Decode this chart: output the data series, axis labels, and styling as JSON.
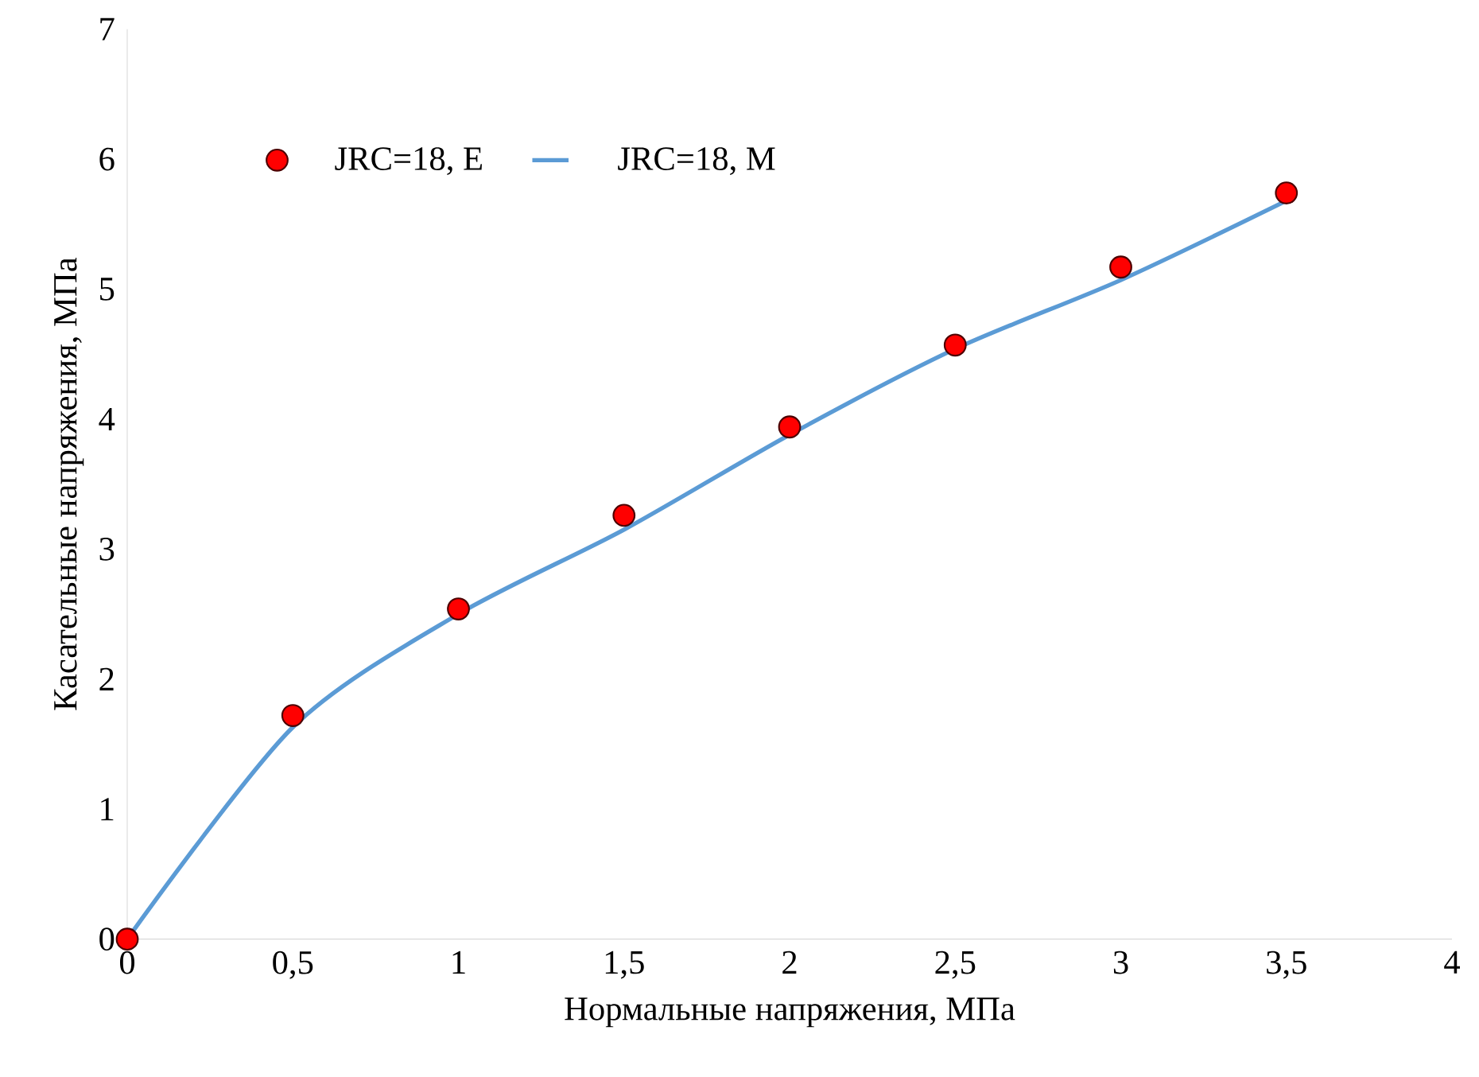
{
  "chart_data": {
    "type": "scatter",
    "xlabel": "Нормальные напряжения, МПа",
    "ylabel": "Касательные напряжения, МПа",
    "xlim": [
      0,
      4
    ],
    "ylim": [
      0,
      7
    ],
    "xticks": [
      0,
      {
        "value": 0.5,
        "label": "0,5"
      },
      1,
      {
        "value": 1.5,
        "label": "1,5"
      },
      2,
      {
        "value": 2.5,
        "label": "2,5"
      },
      3,
      {
        "value": 3.5,
        "label": "3,5"
      },
      4
    ],
    "yticks": [
      0,
      1,
      2,
      3,
      4,
      5,
      6,
      7
    ],
    "grid": false,
    "legend": "top left",
    "series": [
      {
        "name": "JRC=18, E",
        "color": "#ff0000",
        "marker": "circle",
        "x": [
          0,
          0.5,
          1,
          1.5,
          2,
          2.5,
          3,
          3.5
        ],
        "values": [
          0,
          1.72,
          2.54,
          3.26,
          3.94,
          4.57,
          5.17,
          5.74
        ]
      },
      {
        "name": "JRC=18, M",
        "type": "line",
        "color": "#5b9bd5",
        "marker": "none",
        "line_style": "solid",
        "x": [
          0,
          0.5,
          1,
          1.5,
          2,
          2.5,
          3,
          3.5
        ],
        "values": [
          0,
          1.63,
          2.5,
          3.15,
          3.88,
          4.54,
          5.07,
          5.68
        ]
      }
    ]
  }
}
